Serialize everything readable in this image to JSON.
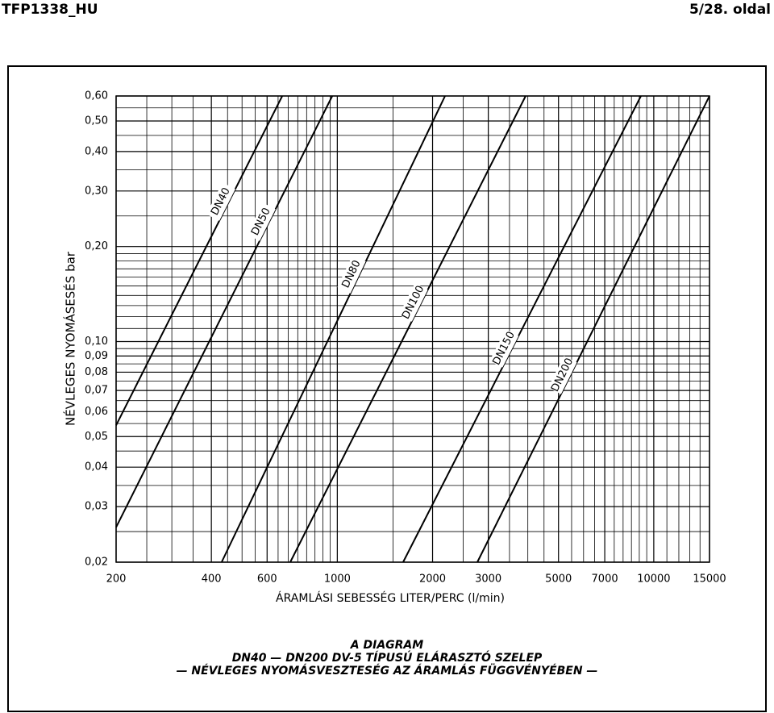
{
  "header": {
    "doc_id": "TFP1338_HU",
    "page": "5/28. oldal"
  },
  "caption": [
    "A DIAGRAM",
    "DN40 — DN200 DV-5 TÍPUSÚ ELÁRASZTÓ SZELEP",
    "— NÉVLEGES NYOMÁSVESZTESÉG AZ ÁRAMLÁS FÜGGVÉNYÉBEN —"
  ],
  "chart_data": {
    "type": "line",
    "x_label": "ÁRAMLÁSI SEBESSÉG LITER/PERC (l/min)",
    "y_label": "NÉVLEGES NYOMÁSESÉS bar",
    "xscale": "log",
    "yscale": "log",
    "grid": true,
    "color": "#000000",
    "xlim": [
      200,
      15000
    ],
    "ylim": [
      0.02,
      0.6
    ],
    "xticks": [
      200,
      400,
      600,
      1000,
      2000,
      3000,
      5000,
      7000,
      10000,
      15000
    ],
    "yticks": [
      {
        "value": 0.02,
        "label": "0,02"
      },
      {
        "value": 0.03,
        "label": "0,03"
      },
      {
        "value": 0.04,
        "label": "0,04"
      },
      {
        "value": 0.05,
        "label": "0,05"
      },
      {
        "value": 0.06,
        "label": "0,06"
      },
      {
        "value": 0.07,
        "label": "0,07"
      },
      {
        "value": 0.08,
        "label": "0,08"
      },
      {
        "value": 0.09,
        "label": "0,09"
      },
      {
        "value": 0.1,
        "label": "0,10"
      },
      {
        "value": 0.2,
        "label": "0,20"
      },
      {
        "value": 0.3,
        "label": "0,30"
      },
      {
        "value": 0.4,
        "label": "0,40"
      },
      {
        "value": 0.5,
        "label": "0,50"
      },
      {
        "value": 0.6,
        "label": "0,60"
      }
    ],
    "xminor": [
      250,
      300,
      350,
      450,
      500,
      550,
      650,
      700,
      750,
      800,
      850,
      900,
      950,
      1500,
      2500,
      3500,
      4000,
      4500,
      5500,
      6000,
      6500,
      7500,
      8000,
      8500,
      9000,
      9500,
      11000,
      12000,
      13000,
      14000
    ],
    "yminor": [
      0.025,
      0.035,
      0.045,
      0.055,
      0.065,
      0.075,
      0.085,
      0.095,
      0.11,
      0.12,
      0.13,
      0.14,
      0.15,
      0.16,
      0.17,
      0.18,
      0.19,
      0.25,
      0.35,
      0.45,
      0.55
    ],
    "series": [
      {
        "name": "DN40",
        "x": [
          200,
          670
        ],
        "values": [
          0.0543,
          0.6
        ]
      },
      {
        "name": "DN50",
        "x": [
          200,
          964
        ],
        "values": [
          0.0258,
          0.6
        ]
      },
      {
        "name": "DN80",
        "x": [
          431,
          2190
        ],
        "values": [
          0.02,
          0.6
        ]
      },
      {
        "name": "DN100",
        "x": [
          710,
          3937
        ],
        "values": [
          0.02,
          0.6
        ]
      },
      {
        "name": "DN150",
        "x": [
          1614,
          9108
        ],
        "values": [
          0.02,
          0.6
        ]
      },
      {
        "name": "DN200",
        "x": [
          2770,
          15000
        ],
        "values": [
          0.02,
          0.6
        ]
      }
    ]
  }
}
